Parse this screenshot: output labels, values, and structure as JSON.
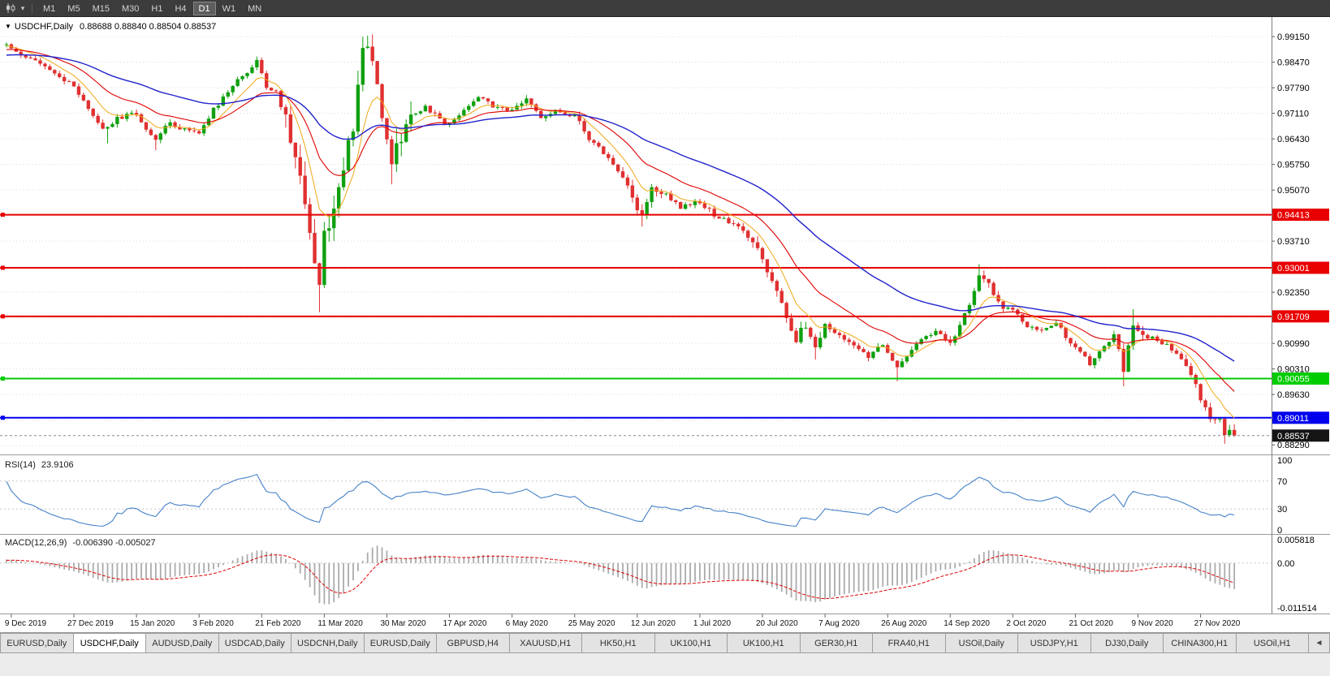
{
  "toolbar": {
    "dropdown_glyph": "▾",
    "timeframes": [
      "M1",
      "M5",
      "M15",
      "M30",
      "H1",
      "H4",
      "D1",
      "W1",
      "MN"
    ],
    "active_timeframe": "D1"
  },
  "main_chart": {
    "dropdown_glyph": "▼",
    "symbol": "USDCHF,Daily",
    "ohlc_text": "0.88688 0.88840 0.88504 0.88537"
  },
  "rsi_panel": {
    "label": "RSI(14)",
    "value": "23.9106",
    "axis_labels": [
      "100",
      "70",
      "30",
      "0"
    ]
  },
  "macd_panel": {
    "label": "MACD(12,26,9)",
    "value": "-0.006390 -0.005027",
    "axis_labels": [
      "0.005818",
      "0.00",
      "-0.011514"
    ]
  },
  "price_axis_labels": [
    "0.99150",
    "0.98470",
    "0.97790",
    "0.97110",
    "0.96430",
    "0.95750",
    "0.95070",
    "0.93710",
    "0.92350",
    "0.90990",
    "0.90310",
    "0.89630",
    "0.88290"
  ],
  "date_axis_labels": [
    "9 Dec 2019",
    "27 Dec 2019",
    "15 Jan 2020",
    "3 Feb 2020",
    "21 Feb 2020",
    "11 Mar 2020",
    "30 Mar 2020",
    "17 Apr 2020",
    "6 May 2020",
    "25 May 2020",
    "12 Jun 2020",
    "1 Jul 2020",
    "20 Jul 2020",
    "7 Aug 2020",
    "26 Aug 2020",
    "14 Sep 2020",
    "2 Oct 2020",
    "21 Oct 2020",
    "9 Nov 2020",
    "27 Nov 2020"
  ],
  "tabs": {
    "items": [
      "EURUSD,Daily",
      "USDCHF,Daily",
      "AUDUSD,Daily",
      "USDCAD,Daily",
      "USDCNH,Daily",
      "EURUSD,Daily",
      "GBPUSD,H4",
      "XAUUSD,H1",
      "HK50,H1",
      "UK100,H1",
      "UK100,H1",
      "GER30,H1",
      "FRA40,H1",
      "USOil,Daily",
      "USDJPY,H1",
      "DJ30,Daily",
      "CHINA300,H1",
      "USOil,H1"
    ],
    "active_index": 1,
    "scroll_left_glyph": "◄"
  },
  "chart_data": {
    "type": "candlestick",
    "symbol": "USDCHF",
    "timeframe": "Daily",
    "current_bar": {
      "open": 0.88688,
      "high": 0.8884,
      "low": 0.88504,
      "close": 0.88537
    },
    "num_candles": 256,
    "price_range": {
      "top": 0.9965,
      "bottom": 0.881
    },
    "grid": {
      "start": 0.9915,
      "step": 0.0068
    },
    "colors": {
      "background": "#FFFFFF",
      "up": "#0FA00F",
      "down": "#E03030",
      "grid": "#DCDCDC",
      "ma_fast": "#F0A818",
      "ma_mid": "#E00000",
      "ma_slow": "#2222CC",
      "rsi_line": "#4682C8",
      "macd_hist": "#ABABAB",
      "macd_signal": "#E00000"
    },
    "horizontal_lines": [
      {
        "price": 0.94413,
        "color": "#E80000"
      },
      {
        "price": 0.93001,
        "color": "#E80000"
      },
      {
        "price": 0.91709,
        "color": "#E80000"
      },
      {
        "price": 0.90055,
        "color": "#00CC00"
      },
      {
        "price": 0.89011,
        "color": "#0000EE"
      }
    ],
    "current_price": {
      "value": 0.88537,
      "badge_color": "#151515"
    },
    "moving_averages": [
      {
        "period": 8,
        "color": "#F0A818",
        "width": 1
      },
      {
        "period": 20,
        "color": "#E00000",
        "width": 1.1
      },
      {
        "period": 50,
        "color": "#2222CC",
        "width": 1.4
      }
    ],
    "indicators": {
      "rsi": {
        "period": 14,
        "current": 23.9106,
        "levels": [
          70,
          30
        ],
        "scale": [
          0,
          100
        ]
      },
      "macd": {
        "fast": 12,
        "slow": 26,
        "signal": 9,
        "current_macd": -0.00639,
        "current_signal": -0.005027,
        "scale_max": 0.005818,
        "scale_min": -0.011514
      }
    },
    "price_anchors": [
      [
        -60,
        0.98
      ],
      [
        -35,
        0.9885
      ],
      [
        -15,
        0.9855
      ],
      [
        -5,
        0.989
      ],
      [
        0,
        0.9895
      ],
      [
        4,
        0.9862
      ],
      [
        8,
        0.9832
      ],
      [
        12,
        0.9798
      ],
      [
        14,
        0.9782
      ],
      [
        17,
        0.9718
      ],
      [
        20,
        0.9668
      ],
      [
        23,
        0.9696
      ],
      [
        27,
        0.9712
      ],
      [
        29,
        0.9668
      ],
      [
        31,
        0.9645
      ],
      [
        34,
        0.9686
      ],
      [
        37,
        0.9668
      ],
      [
        40,
        0.966
      ],
      [
        43,
        0.9722
      ],
      [
        46,
        0.9766
      ],
      [
        49,
        0.9812
      ],
      [
        52,
        0.9848
      ],
      [
        54,
        0.9782
      ],
      [
        56,
        0.9766
      ],
      [
        58,
        0.9696
      ],
      [
        60,
        0.96
      ],
      [
        62,
        0.948
      ],
      [
        64,
        0.933
      ],
      [
        65,
        0.9262
      ],
      [
        66,
        0.9392
      ],
      [
        68,
        0.9462
      ],
      [
        70,
        0.9552
      ],
      [
        72,
        0.9682
      ],
      [
        74,
        0.9865
      ],
      [
        75,
        0.9892
      ],
      [
        77,
        0.98
      ],
      [
        78,
        0.9702
      ],
      [
        80,
        0.9592
      ],
      [
        82,
        0.9632
      ],
      [
        84,
        0.9702
      ],
      [
        87,
        0.9732
      ],
      [
        90,
        0.9692
      ],
      [
        92,
        0.9682
      ],
      [
        95,
        0.9722
      ],
      [
        98,
        0.9756
      ],
      [
        101,
        0.9732
      ],
      [
        105,
        0.9716
      ],
      [
        108,
        0.9746
      ],
      [
        111,
        0.9702
      ],
      [
        114,
        0.9716
      ],
      [
        118,
        0.9706
      ],
      [
        121,
        0.9642
      ],
      [
        124,
        0.9606
      ],
      [
        127,
        0.9562
      ],
      [
        130,
        0.9482
      ],
      [
        132,
        0.9436
      ],
      [
        134,
        0.9516
      ],
      [
        137,
        0.9496
      ],
      [
        140,
        0.9462
      ],
      [
        144,
        0.9476
      ],
      [
        147,
        0.9442
      ],
      [
        150,
        0.9422
      ],
      [
        153,
        0.9396
      ],
      [
        156,
        0.9346
      ],
      [
        158,
        0.9292
      ],
      [
        160,
        0.9232
      ],
      [
        162,
        0.9162
      ],
      [
        164,
        0.9112
      ],
      [
        166,
        0.9152
      ],
      [
        168,
        0.9082
      ],
      [
        170,
        0.9146
      ],
      [
        173,
        0.9122
      ],
      [
        176,
        0.9096
      ],
      [
        179,
        0.9066
      ],
      [
        182,
        0.9096
      ],
      [
        183,
        0.9076
      ],
      [
        185,
        0.9032
      ],
      [
        187,
        0.9066
      ],
      [
        190,
        0.9106
      ],
      [
        193,
        0.9136
      ],
      [
        196,
        0.9092
      ],
      [
        198,
        0.9142
      ],
      [
        200,
        0.9202
      ],
      [
        202,
        0.9282
      ],
      [
        204,
        0.9252
      ],
      [
        206,
        0.9202
      ],
      [
        209,
        0.9186
      ],
      [
        212,
        0.9146
      ],
      [
        215,
        0.9132
      ],
      [
        218,
        0.9152
      ],
      [
        222,
        0.9086
      ],
      [
        225,
        0.9046
      ],
      [
        228,
        0.9092
      ],
      [
        230,
        0.9122
      ],
      [
        232,
        0.9032
      ],
      [
        234,
        0.9142
      ],
      [
        235,
        0.9126
      ],
      [
        238,
        0.9112
      ],
      [
        241,
        0.9096
      ],
      [
        244,
        0.9062
      ],
      [
        246,
        0.9012
      ],
      [
        248,
        0.8956
      ],
      [
        250,
        0.8906
      ],
      [
        252,
        0.8892
      ],
      [
        253,
        0.885
      ],
      [
        254,
        0.887
      ],
      [
        255,
        0.88537
      ]
    ],
    "wick_overrides": [
      {
        "i": 21,
        "low": 0.9631
      },
      {
        "i": 31,
        "low": 0.9613
      },
      {
        "i": 52,
        "high": 0.9862
      },
      {
        "i": 65,
        "low": 0.9182
      },
      {
        "i": 74,
        "high": 0.9915
      },
      {
        "i": 75,
        "high": 0.9902
      },
      {
        "i": 80,
        "low": 0.9522
      },
      {
        "i": 132,
        "low": 0.941
      },
      {
        "i": 168,
        "low": 0.9056
      },
      {
        "i": 185,
        "low": 0.8998
      },
      {
        "i": 202,
        "high": 0.931
      },
      {
        "i": 225,
        "low": 0.904
      },
      {
        "i": 232,
        "low": 0.8985
      },
      {
        "i": 234,
        "high": 0.919
      },
      {
        "i": 253,
        "low": 0.8832
      }
    ],
    "volatility_regions": [
      [
        58,
        84,
        0.0034
      ],
      [
        128,
        136,
        0.0008
      ],
      [
        155,
        170,
        0.001
      ],
      [
        196,
        206,
        0.0005
      ],
      [
        230,
        236,
        0.0009
      ],
      [
        244,
        255,
        0.0005
      ]
    ]
  }
}
